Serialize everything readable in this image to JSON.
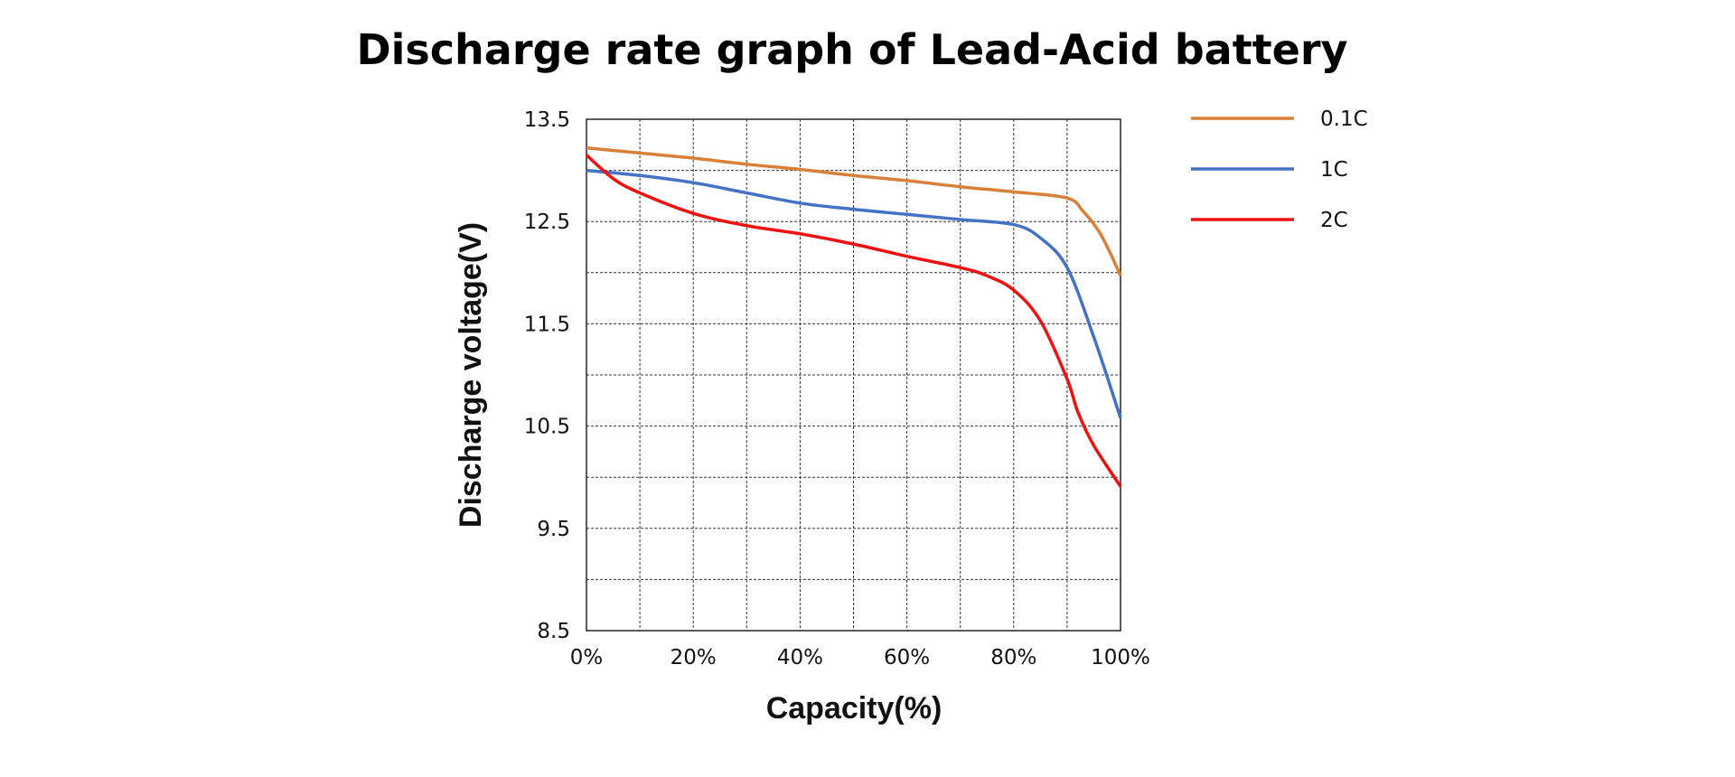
{
  "chart_data": {
    "type": "line",
    "title": "Discharge rate graph of Lead-Acid battery",
    "xlabel": "Capacity(%)",
    "ylabel": "Discharge voltage(V)",
    "xlim": [
      0,
      100
    ],
    "ylim": [
      8.5,
      13.5
    ],
    "grid": true,
    "legend": "right",
    "x_ticks": [
      0,
      20,
      40,
      60,
      80,
      100
    ],
    "x_tick_labels": [
      "0%",
      "20%",
      "40%",
      "60%",
      "80%",
      "100%"
    ],
    "y_ticks": [
      13.5,
      12.5,
      11.5,
      10.5,
      9.5,
      8.5
    ],
    "y_tick_labels": [
      "13.5",
      "12.5",
      "11.5",
      "10.5",
      "9.5",
      "8.5"
    ],
    "series": [
      {
        "name": "0.1C",
        "color": "#d98038",
        "x": [
          0,
          10,
          20,
          30,
          40,
          50,
          60,
          70,
          80,
          90,
          93,
          96,
          98,
          100
        ],
        "y": [
          13.22,
          13.17,
          13.12,
          13.06,
          13.01,
          12.95,
          12.9,
          12.84,
          12.79,
          12.73,
          12.6,
          12.4,
          12.2,
          11.97
        ]
      },
      {
        "name": "1C",
        "color": "#4472c4",
        "x": [
          0,
          10,
          20,
          30,
          40,
          50,
          60,
          70,
          80,
          85,
          90,
          95,
          100
        ],
        "y": [
          13.0,
          12.95,
          12.88,
          12.78,
          12.68,
          12.62,
          12.57,
          12.52,
          12.47,
          12.34,
          12.05,
          11.37,
          10.58
        ]
      },
      {
        "name": "2C",
        "color": "#ee1111",
        "x": [
          0,
          5,
          10,
          20,
          30,
          40,
          50,
          60,
          70,
          75,
          80,
          85,
          90,
          92,
          95,
          100
        ],
        "y": [
          13.15,
          12.92,
          12.78,
          12.58,
          12.46,
          12.38,
          12.28,
          12.16,
          12.05,
          11.97,
          11.83,
          11.53,
          10.96,
          10.64,
          10.31,
          9.91
        ]
      }
    ]
  }
}
